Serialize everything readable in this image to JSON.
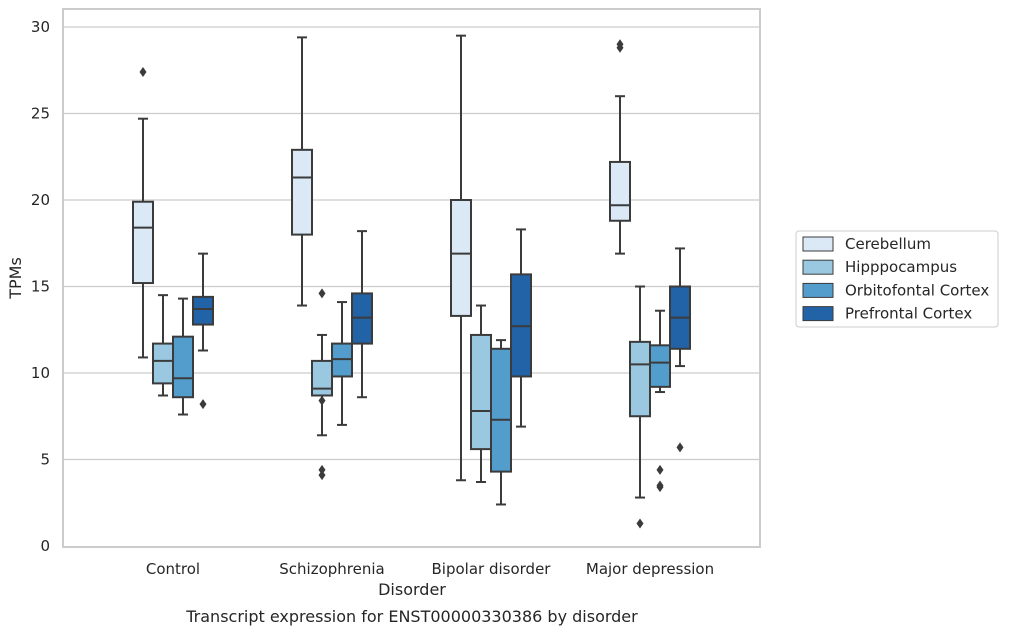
{
  "chart_data": {
    "type": "boxplot",
    "title": "Transcript expression for ENST00000330386 by disorder",
    "xlabel": "Disorder",
    "ylabel": "TPMs",
    "ylim": [
      0,
      31
    ],
    "yticks": [
      0,
      5,
      10,
      15,
      20,
      25,
      30
    ],
    "grid": true,
    "legend_position": "right",
    "categories": [
      "Control",
      "Schizophrenia",
      "Bipolar disorder",
      "Major depression"
    ],
    "series": [
      {
        "name": "Cerebellum",
        "color": "#dbe9f6",
        "boxes": [
          {
            "whisker_low": 10.9,
            "q1": 15.2,
            "median": 18.4,
            "q3": 19.9,
            "whisker_high": 24.7,
            "outliers": [
              27.4
            ]
          },
          {
            "whisker_low": 13.9,
            "q1": 18.0,
            "median": 21.3,
            "q3": 22.9,
            "whisker_high": 29.4,
            "outliers": []
          },
          {
            "whisker_low": 3.8,
            "q1": 13.3,
            "median": 16.9,
            "q3": 20.0,
            "whisker_high": 29.5,
            "outliers": []
          },
          {
            "whisker_low": 16.9,
            "q1": 18.8,
            "median": 19.7,
            "q3": 22.2,
            "whisker_high": 26.0,
            "outliers": [
              28.8,
              29.0
            ]
          }
        ]
      },
      {
        "name": "Hipppocampus",
        "color": "#9ac8e0",
        "boxes": [
          {
            "whisker_low": 8.7,
            "q1": 9.4,
            "median": 10.7,
            "q3": 11.7,
            "whisker_high": 14.5,
            "outliers": []
          },
          {
            "whisker_low": 6.4,
            "q1": 8.7,
            "median": 9.1,
            "q3": 10.7,
            "whisker_high": 12.2,
            "outliers": [
              8.4,
              4.1,
              4.4,
              14.6
            ]
          },
          {
            "whisker_low": 3.7,
            "q1": 5.6,
            "median": 7.8,
            "q3": 12.2,
            "whisker_high": 13.9,
            "outliers": []
          },
          {
            "whisker_low": 2.8,
            "q1": 7.5,
            "median": 10.5,
            "q3": 11.8,
            "whisker_high": 15.0,
            "outliers": [
              1.3
            ]
          }
        ]
      },
      {
        "name": "Orbitofontal Cortex",
        "color": "#529dcc",
        "boxes": [
          {
            "whisker_low": 7.6,
            "q1": 8.6,
            "median": 9.7,
            "q3": 12.1,
            "whisker_high": 14.3,
            "outliers": []
          },
          {
            "whisker_low": 7.0,
            "q1": 9.8,
            "median": 10.8,
            "q3": 11.7,
            "whisker_high": 14.1,
            "outliers": []
          },
          {
            "whisker_low": 2.4,
            "q1": 4.3,
            "median": 7.3,
            "q3": 11.4,
            "whisker_high": 11.9,
            "outliers": []
          },
          {
            "whisker_low": 8.9,
            "q1": 9.2,
            "median": 10.6,
            "q3": 11.6,
            "whisker_high": 13.6,
            "outliers": [
              4.4,
              3.4,
              3.5
            ]
          }
        ]
      },
      {
        "name": "Prefrontal Cortex",
        "color": "#2263a8",
        "boxes": [
          {
            "whisker_low": 11.3,
            "q1": 12.8,
            "median": 13.7,
            "q3": 14.4,
            "whisker_high": 16.9,
            "outliers": [
              8.2
            ]
          },
          {
            "whisker_low": 8.6,
            "q1": 11.7,
            "median": 13.2,
            "q3": 14.6,
            "whisker_high": 18.2,
            "outliers": []
          },
          {
            "whisker_low": 6.9,
            "q1": 9.8,
            "median": 12.7,
            "q3": 15.7,
            "whisker_high": 18.3,
            "outliers": []
          },
          {
            "whisker_low": 10.4,
            "q1": 11.4,
            "median": 13.2,
            "q3": 15.0,
            "whisker_high": 17.2,
            "outliers": [
              5.7
            ]
          }
        ]
      }
    ]
  }
}
